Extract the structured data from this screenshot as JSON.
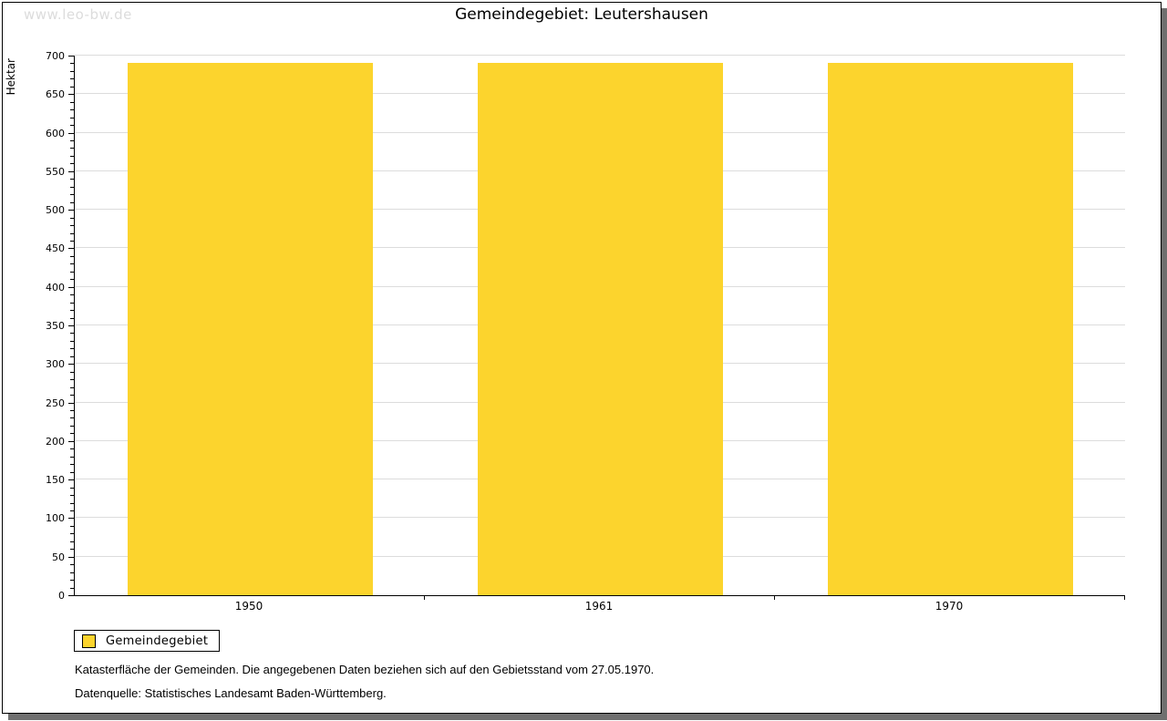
{
  "watermark": "www.leo-bw.de",
  "title": "Gemeindegebiet: Leutershausen",
  "y_axis_title": "Hektar",
  "chart_data": {
    "type": "bar",
    "title": "Gemeindegebiet: Leutershausen",
    "categories": [
      "1950",
      "1961",
      "1970"
    ],
    "series": [
      {
        "name": "Gemeindegebiet",
        "values": [
          690,
          690,
          690
        ]
      }
    ],
    "xlabel": "",
    "ylabel": "Hektar",
    "ylim": [
      0,
      700
    ],
    "y_major_step": 50,
    "y_minor_step": 10,
    "grid": true,
    "legend_position": "bottom-left",
    "bar_color": "#fcd42d"
  },
  "legend": {
    "label": "Gemeindegebiet",
    "swatch_color": "#fcd42d"
  },
  "notes": {
    "line1": "Katasterfläche der Gemeinden. Die angegebenen Daten beziehen sich auf den Gebietsstand vom 27.05.1970.",
    "line2": "Datenquelle: Statistisches Landesamt Baden-Württemberg."
  },
  "colors": {
    "bar": "#fcd42d",
    "gridline": "#dcdcdc",
    "axis": "#000000",
    "shadow": "#6f6f6f",
    "watermark": "#dcdcdc"
  }
}
